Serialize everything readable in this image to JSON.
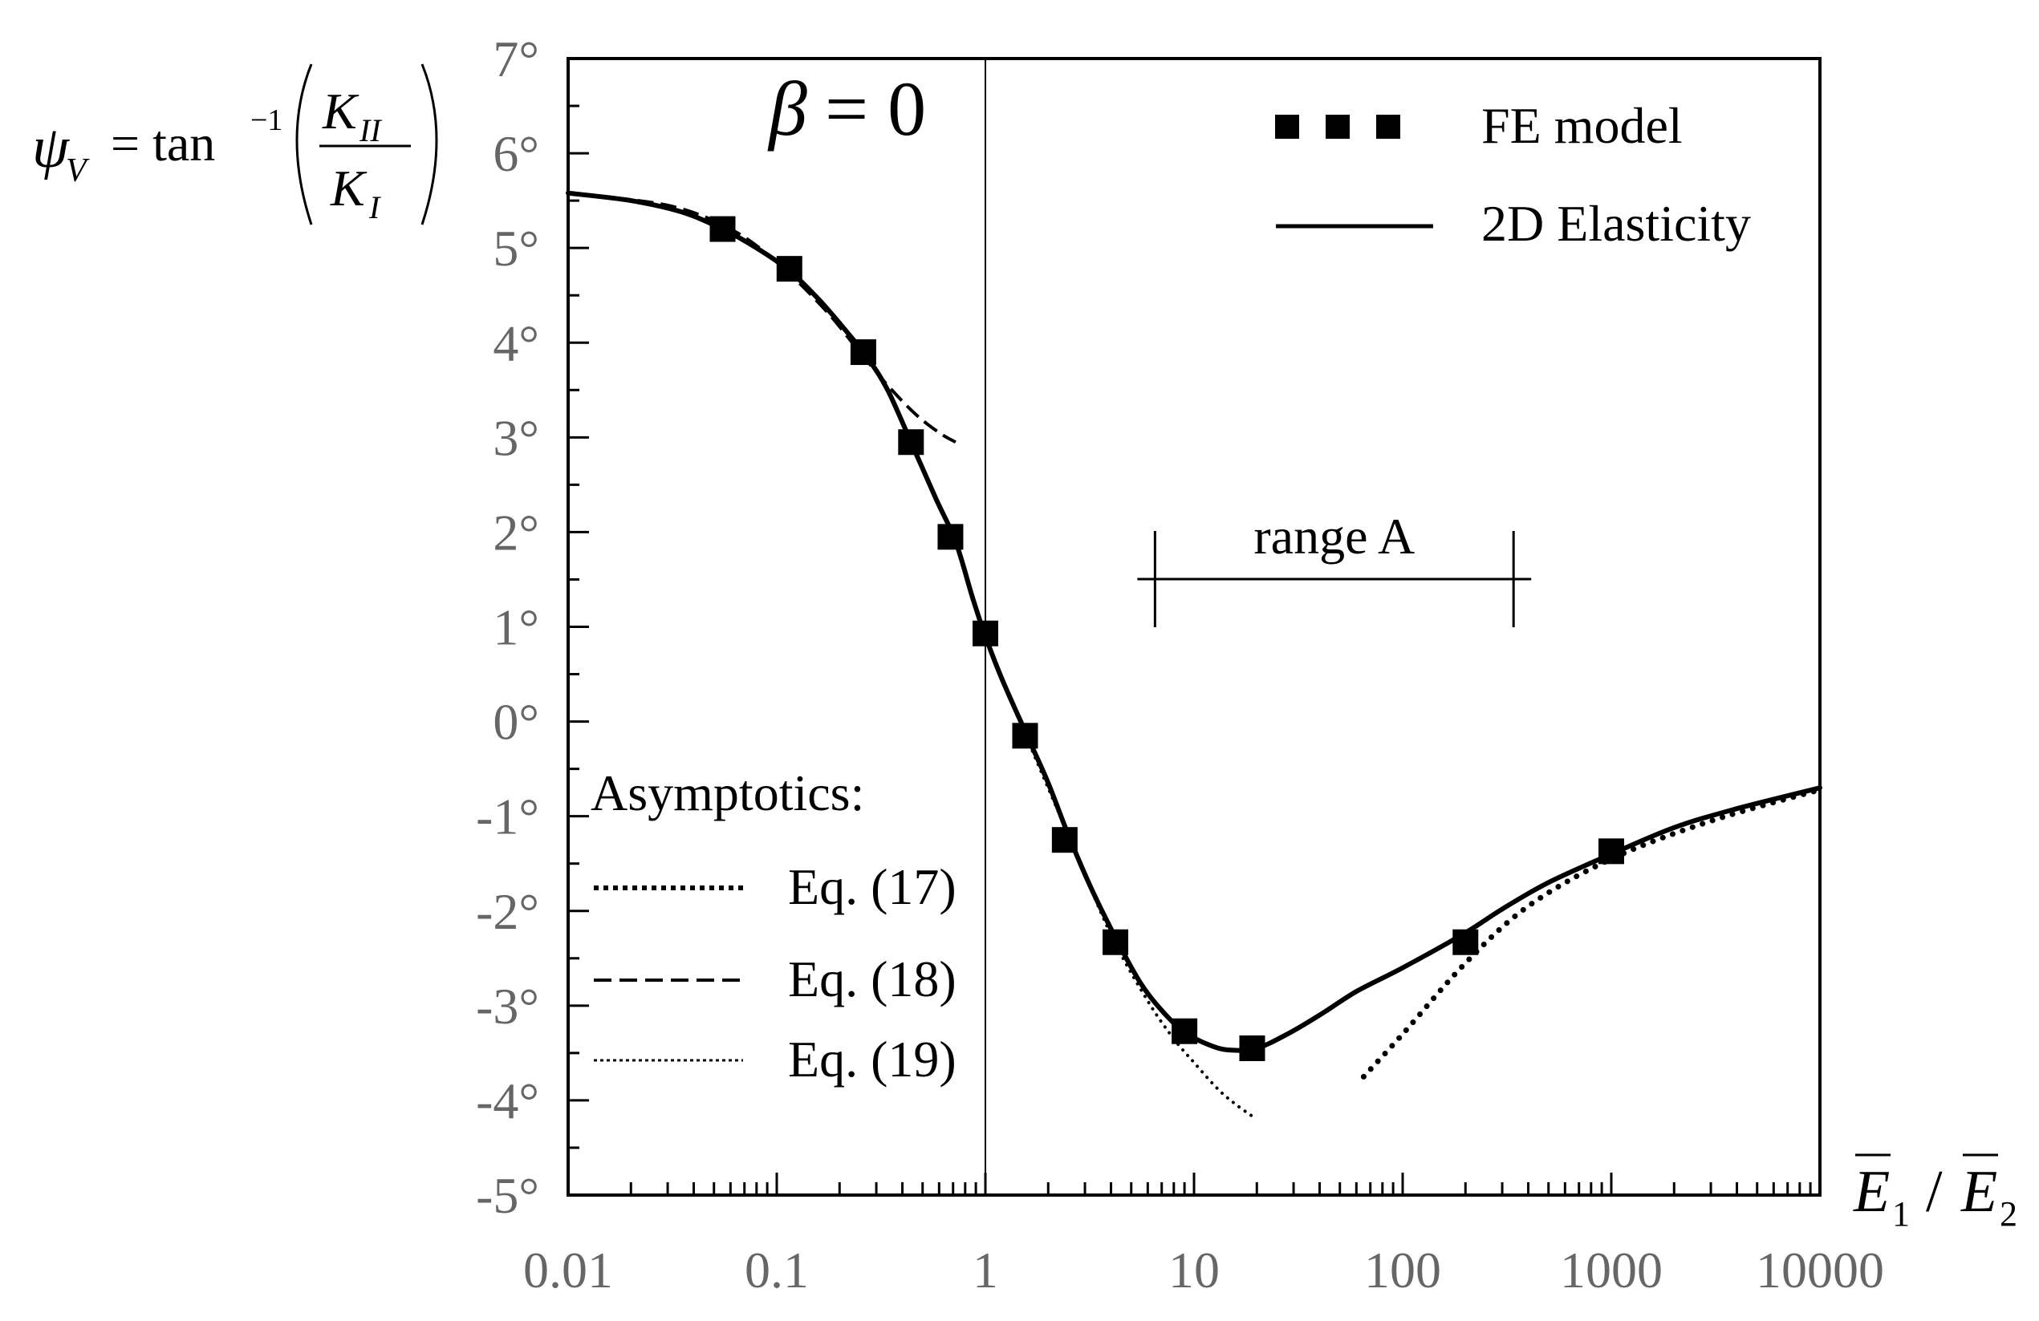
{
  "chart_data": {
    "type": "line",
    "title": "",
    "x_scale": "log",
    "xlim": [
      0.01,
      10000
    ],
    "ylim": [
      -5,
      7
    ],
    "ylabel": {
      "psi": "ψ",
      "psi_sub": "V",
      "equals_tan": "= tan",
      "tan_exp": "−1",
      "numerator": "K",
      "numerator_sub": "II",
      "denominator": "K",
      "denominator_sub": "I"
    },
    "xlabel": {
      "e1": "E",
      "e1_sub": "1",
      "slash": "/",
      "e2": "E",
      "e2_sub": "2"
    },
    "x_ticks": [
      {
        "value": 0.01,
        "label": "0.01"
      },
      {
        "value": 0.1,
        "label": "0.1"
      },
      {
        "value": 1,
        "label": "1"
      },
      {
        "value": 10,
        "label": "10"
      },
      {
        "value": 100,
        "label": "100"
      },
      {
        "value": 1000,
        "label": "1000"
      },
      {
        "value": 10000,
        "label": "10000"
      }
    ],
    "y_ticks": [
      {
        "value": 7,
        "label": "7°"
      },
      {
        "value": 6,
        "label": "6°"
      },
      {
        "value": 5,
        "label": "5°"
      },
      {
        "value": 4,
        "label": "4°"
      },
      {
        "value": 3,
        "label": "3°"
      },
      {
        "value": 2,
        "label": "2°"
      },
      {
        "value": 1,
        "label": "1°"
      },
      {
        "value": 0,
        "label": "0°"
      },
      {
        "value": -1,
        "label": "-1°"
      },
      {
        "value": -2,
        "label": "-2°"
      },
      {
        "value": -3,
        "label": "-3°"
      },
      {
        "value": -4,
        "label": "-4°"
      },
      {
        "value": -5,
        "label": "-5°"
      }
    ],
    "reference_line_x": 1,
    "series": [
      {
        "name": "2D Elasticity",
        "style": "solid",
        "x": [
          0.01,
          0.02,
          0.035,
          0.055,
          0.08,
          0.115,
          0.16,
          0.21,
          0.27,
          0.34,
          0.45,
          0.58,
          0.72,
          0.87,
          1.0,
          1.2,
          1.6,
          2.0,
          2.5,
          3.2,
          4.2,
          5.5,
          7.0,
          9.0,
          12,
          15,
          20,
          28,
          40,
          60,
          100,
          200,
          300,
          500,
          1000,
          2000,
          4000,
          10000
        ],
        "y": [
          5.58,
          5.5,
          5.38,
          5.2,
          5.0,
          4.76,
          4.45,
          4.15,
          3.85,
          3.5,
          2.9,
          2.35,
          1.9,
          1.3,
          0.9,
          0.45,
          -0.17,
          -0.65,
          -1.2,
          -1.75,
          -2.28,
          -2.75,
          -3.05,
          -3.28,
          -3.42,
          -3.47,
          -3.45,
          -3.3,
          -3.1,
          -2.85,
          -2.6,
          -2.23,
          -1.98,
          -1.7,
          -1.4,
          -1.12,
          -0.92,
          -0.7
        ]
      },
      {
        "name": "FE model",
        "style": "markers",
        "x": [
          0.055,
          0.115,
          0.26,
          0.44,
          0.68,
          1.0,
          1.55,
          2.4,
          4.2,
          9.0,
          19,
          200,
          1000
        ],
        "y": [
          5.2,
          4.78,
          3.9,
          2.95,
          1.95,
          0.93,
          -0.15,
          -1.25,
          -2.33,
          -3.27,
          -3.45,
          -2.33,
          -1.37
        ]
      },
      {
        "name": "Eq. (17)",
        "style": "dotted-heavy",
        "x": [
          65,
          100,
          200,
          400,
          1000,
          3000,
          10000
        ],
        "y": [
          -3.75,
          -3.3,
          -2.55,
          -1.95,
          -1.45,
          -1.05,
          -0.72
        ]
      },
      {
        "name": "Eq. (18)",
        "style": "dashed",
        "x": [
          0.01,
          0.03,
          0.06,
          0.1,
          0.17,
          0.25,
          0.34,
          0.46,
          0.6,
          0.72
        ],
        "y": [
          5.58,
          5.45,
          5.2,
          4.85,
          4.35,
          3.9,
          3.55,
          3.25,
          3.05,
          2.95
        ]
      },
      {
        "name": "Eq. (19)",
        "style": "dotted-fine",
        "x": [
          1.0,
          1.6,
          2.5,
          4.0,
          6.0,
          8.0,
          10,
          13,
          16,
          20
        ],
        "y": [
          0.9,
          -0.2,
          -1.2,
          -2.25,
          -2.95,
          -3.35,
          -3.6,
          -3.88,
          -4.05,
          -4.2
        ]
      }
    ],
    "legend": {
      "fe_label": "FE model",
      "elasticity_label": "2D Elasticity"
    },
    "asymptotics": {
      "title": "Asymptotics:",
      "eq17": "Eq. (17)",
      "eq18": "Eq. (18)",
      "eq19": "Eq. (19)"
    },
    "annotations": {
      "beta_symbol": "β",
      "beta_eq": "= 0",
      "range_label": "range A",
      "range_from": 6.5,
      "range_to": 340
    }
  }
}
